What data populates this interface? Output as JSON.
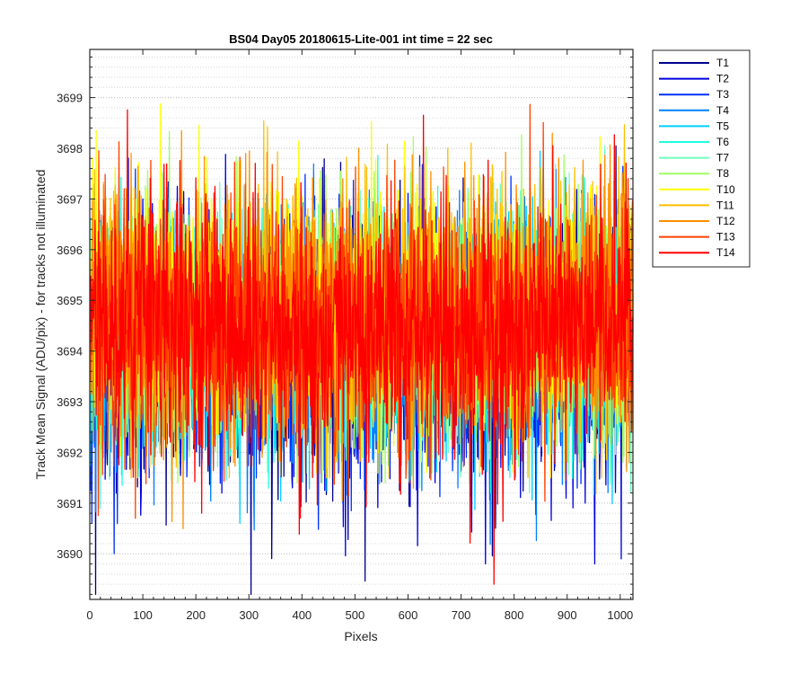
{
  "chart_data": {
    "type": "line",
    "title": "BS04 Day05 20180615-Lite-001 int time = 22 sec",
    "xlabel": "Pixels",
    "ylabel": "Track Mean Signal (ADU/pix) - for tracks not illuminated",
    "xlim": [
      0,
      1024
    ],
    "ylim": [
      3689.1,
      3699.95
    ],
    "x_ticks": [
      0,
      100,
      200,
      300,
      400,
      500,
      600,
      700,
      800,
      900,
      1000
    ],
    "y_ticks": [
      3690,
      3691,
      3692,
      3693,
      3694,
      3695,
      3696,
      3697,
      3698,
      3699
    ],
    "grid": "dotted y-grid, major and minor",
    "legend_position": "outside-right-top",
    "x_sampling": "one value per pixel, 1 to 1024",
    "series": [
      {
        "name": "T1",
        "color": "#00008f",
        "mean": 3694.1,
        "spread": 1.25,
        "min": 3689.2,
        "max": 3698.6,
        "dip_at": [
          11,
          304
        ],
        "dip_to": [
          3689.2,
          3689.2
        ]
      },
      {
        "name": "T2",
        "color": "#0000df",
        "mean": 3694.0,
        "spread": 1.25,
        "min": 3689.8,
        "max": 3698.4,
        "dip_at": [
          746,
          1002
        ],
        "dip_to": [
          3689.8,
          3689.9
        ]
      },
      {
        "name": "T3",
        "color": "#0030ff",
        "mean": 3694.1,
        "spread": 1.2,
        "min": 3690.0,
        "max": 3698.5
      },
      {
        "name": "T4",
        "color": "#0080ff",
        "mean": 3694.2,
        "spread": 1.2,
        "min": 3690.1,
        "max": 3698.7
      },
      {
        "name": "T5",
        "color": "#00cfff",
        "mean": 3694.3,
        "spread": 1.2,
        "min": 3690.6,
        "max": 3698.9
      },
      {
        "name": "T6",
        "color": "#20ffdf",
        "mean": 3694.4,
        "spread": 1.2,
        "min": 3690.9,
        "max": 3698.8
      },
      {
        "name": "T7",
        "color": "#70ffbf",
        "mean": 3694.5,
        "spread": 1.2,
        "min": 3691.2,
        "max": 3698.8
      },
      {
        "name": "T8",
        "color": "#9fff60",
        "mean": 3694.6,
        "spread": 1.2,
        "min": 3691.4,
        "max": 3698.9
      },
      {
        "name": "T10",
        "color": "#ffff00",
        "mean": 3694.9,
        "spread": 1.3,
        "min": 3691.6,
        "max": 3699.9
      },
      {
        "name": "T11",
        "color": "#ffbf00",
        "mean": 3694.8,
        "spread": 1.3,
        "min": 3691.5,
        "max": 3699.6
      },
      {
        "name": "T12",
        "color": "#ff8f00",
        "mean": 3694.7,
        "spread": 1.3,
        "min": 3690.2,
        "max": 3699.6
      },
      {
        "name": "T13",
        "color": "#ff4000",
        "mean": 3694.6,
        "spread": 1.25,
        "min": 3690.7,
        "max": 3699.1
      },
      {
        "name": "T14",
        "color": "#ff0000",
        "mean": 3694.5,
        "spread": 1.25,
        "min": 3689.4,
        "max": 3699.0,
        "dip_at": [
          762
        ],
        "dip_to": [
          3689.4
        ]
      }
    ]
  }
}
